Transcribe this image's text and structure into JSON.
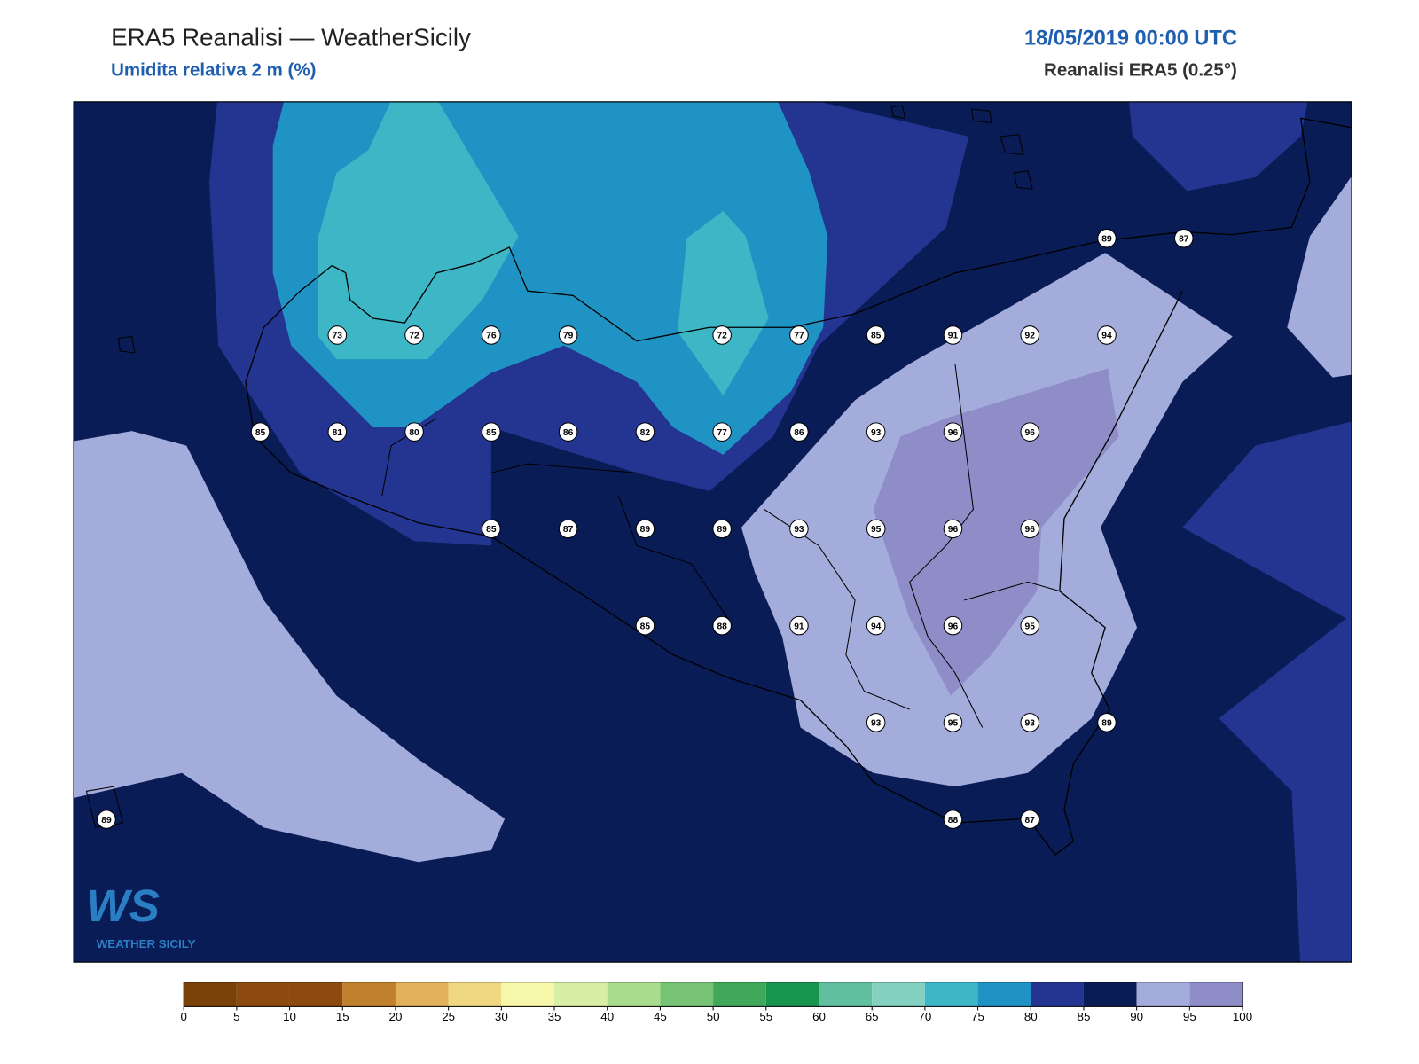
{
  "header": {
    "title": "ERA5 Reanalisi — WeatherSicily",
    "subtitle": "Umidita relativa 2 m (%)",
    "valid_time": "18/05/2019 00:00 UTC",
    "source": "Reanalisi ERA5 (0.25°)"
  },
  "map": {
    "stations": [
      89,
      87,
      73,
      72,
      76,
      79,
      72,
      77,
      85,
      91,
      92,
      94,
      85,
      81,
      80,
      85,
      86,
      82,
      77,
      86,
      93,
      96,
      96,
      85,
      87,
      89,
      89,
      93,
      95,
      96,
      96,
      85,
      88,
      91,
      94,
      96,
      95,
      93,
      95,
      93,
      89,
      89,
      88,
      87
    ]
  },
  "colorbar": {
    "ticks": [
      0,
      5,
      10,
      15,
      20,
      25,
      30,
      35,
      40,
      45,
      50,
      55,
      60,
      65,
      70,
      75,
      80,
      85,
      90,
      95,
      100
    ],
    "colors": [
      "#7a4208",
      "#8c4a0e",
      "#8c4a0e",
      "#c07f2c",
      "#e0b05a",
      "#f0d882",
      "#f6f7a8",
      "#d9eea5",
      "#a9dc8d",
      "#77c375",
      "#3fa85a",
      "#17944e",
      "#5fbf9f",
      "#84d1c2",
      "#3db6c6",
      "#1f93c4",
      "#243491",
      "#0a1c55",
      "#a4acdc",
      "#8f8dc8"
    ]
  },
  "logo": {
    "mark": "WS",
    "name": "WEATHER SICILY"
  }
}
